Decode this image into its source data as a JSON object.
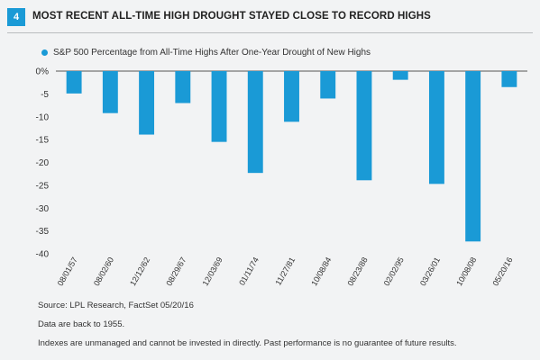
{
  "header": {
    "figure_number": "4",
    "title": "MOST RECENT ALL-TIME HIGH DROUGHT STAYED CLOSE TO RECORD HIGHS"
  },
  "colors": {
    "bar": "#1a9ad6",
    "badge": "#1a9ad6"
  },
  "chart_data": {
    "type": "bar",
    "categories": [
      "08/01/57",
      "08/02/60",
      "12/12/62",
      "08/29/67",
      "12/03/69",
      "01/11/74",
      "11/27/81",
      "10/08/84",
      "08/23/88",
      "02/02/95",
      "03/26/01",
      "10/08/08",
      "05/20/16"
    ],
    "series": [
      {
        "name": "S&P 500 Percentage from All-Time Highs After One-Year Drought of New Highs",
        "values": [
          -4.9,
          -9.2,
          -13.9,
          -7.0,
          -15.5,
          -22.3,
          -11.1,
          -6.0,
          -23.9,
          -1.9,
          -24.7,
          -37.3,
          -3.5
        ]
      }
    ],
    "ylim": [
      -40,
      0
    ],
    "yticks": [
      0,
      -5,
      -10,
      -15,
      -20,
      -25,
      -30,
      -35,
      -40
    ],
    "ytick_labels": [
      "0%",
      "-5",
      "-10",
      "-15",
      "-20",
      "-25",
      "-30",
      "-35",
      "-40"
    ],
    "legend_position": "top-left",
    "grid": false
  },
  "notes": {
    "source": "Source: LPL Research, FactSet   05/20/16",
    "data_range": "Data are back to 1955.",
    "disclaimer": "Indexes are unmanaged and cannot be invested in directly. Past performance is no guarantee of future results."
  }
}
